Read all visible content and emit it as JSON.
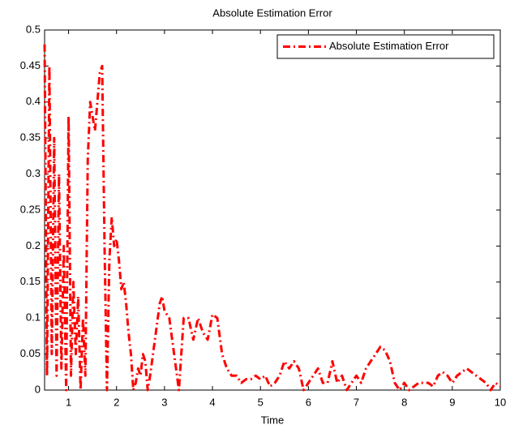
{
  "chart_data": {
    "type": "line",
    "title": "Absolute Estimation Error",
    "xlabel": "Time",
    "x": [
      0.5,
      0.55,
      0.6,
      0.65,
      0.7,
      0.75,
      0.8,
      0.85,
      0.9,
      0.95,
      1.0,
      1.05,
      1.1,
      1.15,
      1.2,
      1.25,
      1.3,
      1.35,
      1.4,
      1.45,
      1.5,
      1.55,
      1.6,
      1.65,
      1.7,
      1.75,
      1.8,
      1.85,
      1.9,
      1.95,
      2.0,
      2.05,
      2.1,
      2.15,
      2.2,
      2.25,
      2.3,
      2.35,
      2.4,
      2.45,
      2.5,
      2.55,
      2.6,
      2.65,
      2.7,
      2.8,
      2.9,
      2.95,
      3.0,
      3.1,
      3.2,
      3.3,
      3.35,
      3.4,
      3.5,
      3.6,
      3.7,
      3.8,
      3.9,
      4.0,
      4.1,
      4.2,
      4.3,
      4.4,
      4.5,
      4.6,
      4.7,
      4.8,
      4.9,
      5.0,
      5.1,
      5.2,
      5.3,
      5.4,
      5.5,
      5.6,
      5.7,
      5.8,
      5.9,
      6.0,
      6.1,
      6.2,
      6.3,
      6.4,
      6.5,
      6.6,
      6.7,
      6.8,
      6.9,
      7.0,
      7.1,
      7.2,
      7.3,
      7.4,
      7.5,
      7.6,
      7.7,
      7.8,
      7.9,
      8.0,
      8.1,
      8.2,
      8.3,
      8.4,
      8.5,
      8.6,
      8.7,
      8.8,
      8.9,
      9.0,
      9.1,
      9.2,
      9.3,
      9.4,
      9.5,
      9.6,
      9.7,
      9.8,
      9.9,
      10.0
    ],
    "series": [
      {
        "name": "Absolute Estimation Error",
        "color": "#ff0000",
        "values": [
          0.48,
          0.02,
          0.45,
          0.05,
          0.35,
          0.02,
          0.3,
          0.03,
          0.2,
          0.0,
          0.38,
          0.02,
          0.15,
          0.05,
          0.13,
          0.0,
          0.1,
          0.02,
          0.32,
          0.4,
          0.38,
          0.36,
          0.4,
          0.44,
          0.45,
          0.2,
          0.0,
          0.18,
          0.24,
          0.2,
          0.21,
          0.18,
          0.14,
          0.15,
          0.12,
          0.08,
          0.05,
          0.0,
          0.01,
          0.03,
          0.02,
          0.05,
          0.04,
          0.0,
          0.02,
          0.07,
          0.12,
          0.13,
          0.11,
          0.1,
          0.05,
          0.0,
          0.05,
          0.1,
          0.1,
          0.07,
          0.1,
          0.08,
          0.07,
          0.105,
          0.1,
          0.05,
          0.03,
          0.02,
          0.02,
          0.01,
          0.015,
          0.015,
          0.02,
          0.015,
          0.02,
          0.005,
          0.01,
          0.02,
          0.04,
          0.03,
          0.04,
          0.03,
          0.0,
          0.01,
          0.02,
          0.03,
          0.01,
          0.01,
          0.04,
          0.01,
          0.02,
          0.0,
          0.01,
          0.02,
          0.01,
          0.03,
          0.04,
          0.05,
          0.06,
          0.055,
          0.04,
          0.01,
          0.0,
          0.01,
          0.0,
          0.005,
          0.01,
          0.01,
          0.01,
          0.005,
          0.02,
          0.025,
          0.02,
          0.01,
          0.02,
          0.025,
          0.03,
          0.025,
          0.02,
          0.015,
          0.01,
          0.0,
          0.01,
          0.005
        ]
      }
    ],
    "xlim": [
      0.5,
      10
    ],
    "xticks": [
      1,
      2,
      3,
      4,
      5,
      6,
      7,
      8,
      9,
      10
    ],
    "ylim": [
      0,
      0.5
    ],
    "yticks": [
      0,
      0.05,
      0.1,
      0.15,
      0.2,
      0.25,
      0.3,
      0.35,
      0.4,
      0.45,
      0.5
    ],
    "legend": "upper right"
  }
}
